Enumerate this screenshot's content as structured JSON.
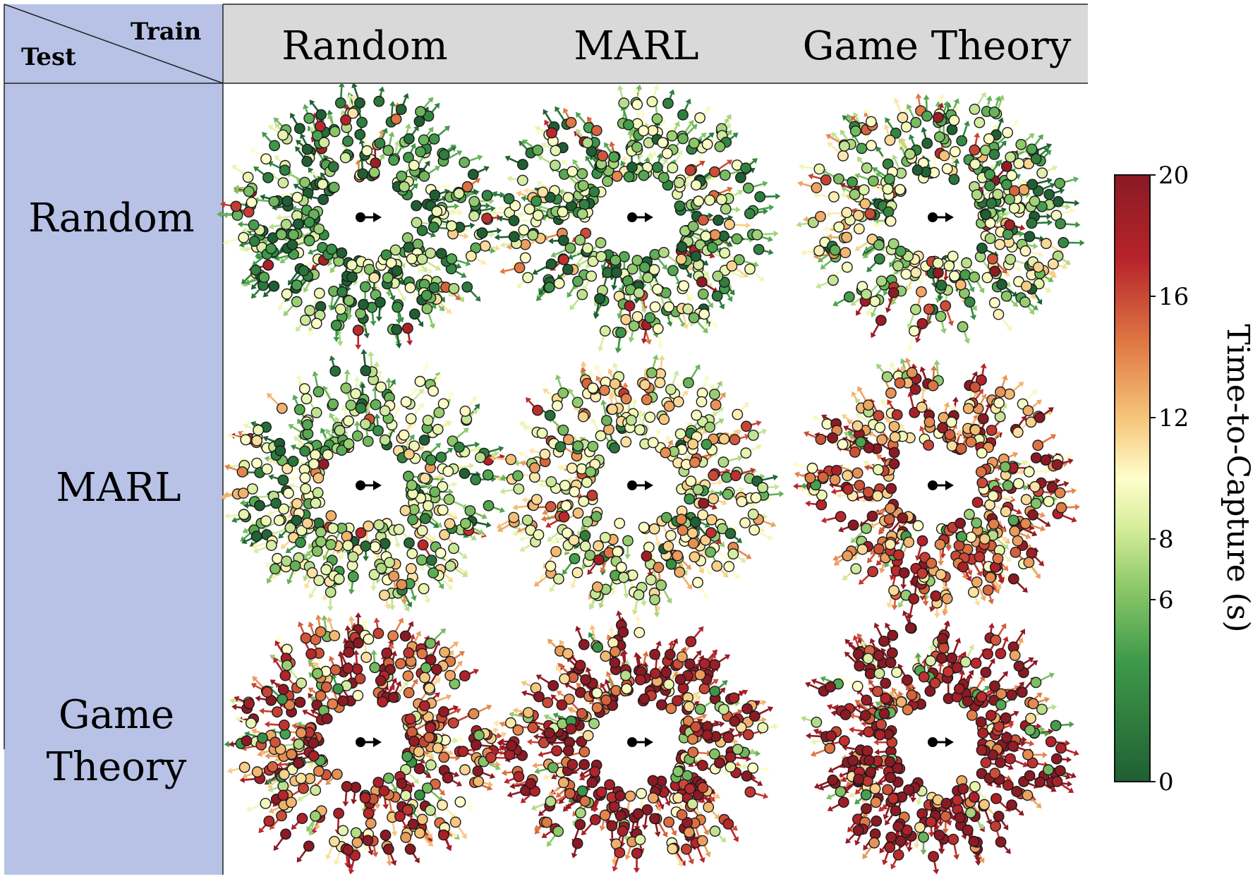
{
  "header": {
    "corner_train": "Train",
    "corner_test": "Test",
    "columns": [
      "Random",
      "MARL",
      "Game Theory"
    ],
    "rows": [
      [
        "Random"
      ],
      [
        "MARL"
      ],
      [
        "Game",
        "Theory"
      ]
    ]
  },
  "colors": {
    "header_bg": "#d9d9d9",
    "row_header_bg": "#b7c2e6",
    "colormap": [
      "#1f5f33",
      "#3f9a4a",
      "#8cc869",
      "#e8f5b0",
      "#fffecb",
      "#f6c47a",
      "#e07a45",
      "#b8242b",
      "#8a1a24"
    ]
  },
  "chart_data": {
    "type": "scatter",
    "grid": "3x3",
    "x_categories_label": "Train",
    "y_categories_label": "Test",
    "train": [
      "Random",
      "MARL",
      "Game Theory"
    ],
    "test": [
      "Random",
      "MARL",
      "Game Theory"
    ],
    "colorbar": {
      "label": "Time-to-Capture (s)",
      "range": [
        0,
        20
      ],
      "ticks": [
        0,
        6,
        8,
        12,
        16,
        20
      ]
    },
    "cells": [
      {
        "train": "Random",
        "test": "Random",
        "mean_time_to_capture": 3.5
      },
      {
        "train": "MARL",
        "test": "Random",
        "mean_time_to_capture": 5.0
      },
      {
        "train": "Game Theory",
        "test": "Random",
        "mean_time_to_capture": 6.5
      },
      {
        "train": "Random",
        "test": "MARL",
        "mean_time_to_capture": 7.0
      },
      {
        "train": "MARL",
        "test": "MARL",
        "mean_time_to_capture": 9.0
      },
      {
        "train": "Game Theory",
        "test": "MARL",
        "mean_time_to_capture": 15.0
      },
      {
        "train": "Random",
        "test": "Game Theory",
        "mean_time_to_capture": 15.5
      },
      {
        "train": "MARL",
        "test": "Game Theory",
        "mean_time_to_capture": 18.0
      },
      {
        "train": "Game Theory",
        "test": "Game Theory",
        "mean_time_to_capture": 19.0
      }
    ]
  }
}
